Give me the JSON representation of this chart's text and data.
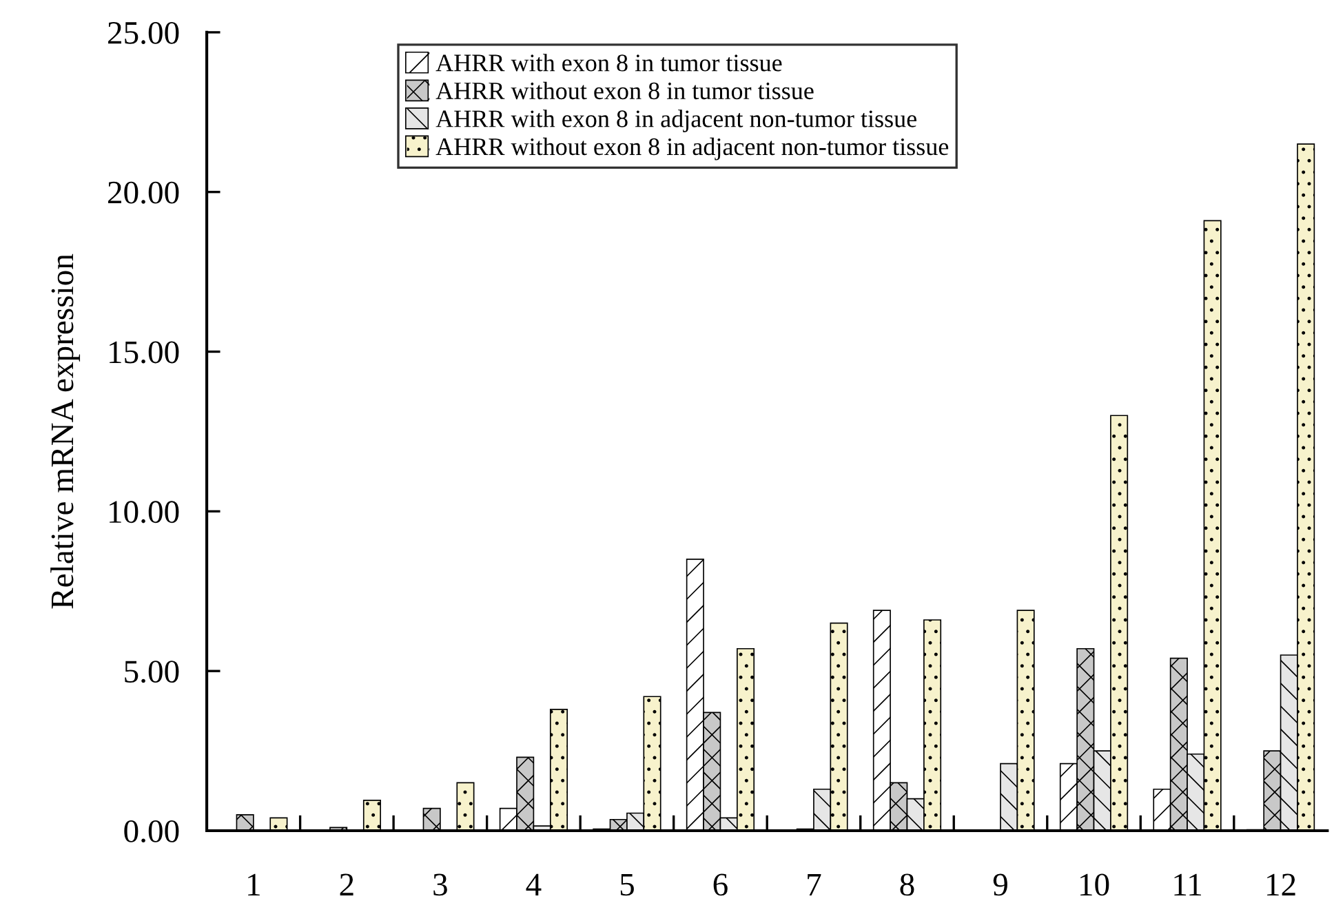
{
  "chart_data": {
    "type": "bar",
    "ylabel": "Relative mRNA expression",
    "categories": [
      "1",
      "2",
      "3",
      "4",
      "5",
      "6",
      "7",
      "8",
      "9",
      "10",
      "11",
      "12"
    ],
    "series": [
      {
        "name": "AHRR with exon 8 in tumor tissue",
        "color": "#ffffff",
        "values": [
          null,
          null,
          null,
          0.7,
          0.05,
          8.5,
          null,
          6.9,
          null,
          2.1,
          1.3,
          0.03
        ]
      },
      {
        "name": "AHRR without exon 8 in tumor tissue",
        "color": "#c8c8c8",
        "values": [
          0.5,
          0.1,
          0.7,
          2.3,
          0.35,
          3.7,
          0.05,
          1.5,
          null,
          5.7,
          5.4,
          2.5
        ]
      },
      {
        "name": "AHRR with exon 8 in adjacent non-tumor tissue",
        "color": "#e6e6e6",
        "values": [
          null,
          null,
          null,
          0.15,
          0.55,
          0.4,
          1.3,
          1.0,
          2.1,
          2.5,
          2.4,
          5.5
        ]
      },
      {
        "name": "AHRR without exon 8 in adjacent non-tumor tissue",
        "color": "#f7f2cc",
        "values": [
          0.4,
          0.95,
          1.5,
          3.8,
          4.2,
          5.7,
          6.5,
          6.6,
          6.9,
          13.0,
          19.1,
          21.5
        ]
      }
    ],
    "ylim": [
      0,
      25
    ],
    "yticks": [
      {
        "value": 0,
        "label": "0.00"
      },
      {
        "value": 5,
        "label": "5.00"
      },
      {
        "value": 10,
        "label": "10.00"
      },
      {
        "value": 15,
        "label": "15.00"
      },
      {
        "value": 20,
        "label": "20.00"
      },
      {
        "value": 25,
        "label": "25.00"
      }
    ],
    "legend": "top"
  }
}
